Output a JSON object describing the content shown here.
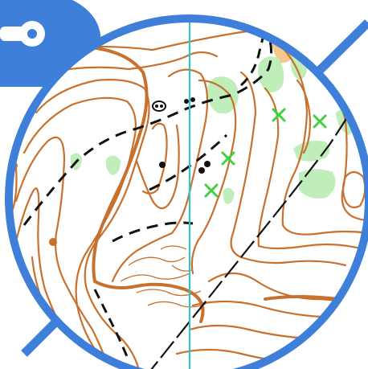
{
  "map": {
    "type": "orienteering-map-magnifier",
    "colors": {
      "frame_blue": "#3d7fd9",
      "contour_brown": "#c8702e",
      "vegetation_green": "#bfeebb",
      "feature_green": "#3fd23f",
      "track_black": "#111111",
      "meridian_cyan": "#34c3c9",
      "open_land_yellow": "#f6c98a",
      "background": "#ffffff"
    },
    "symbols": {
      "badge": "key-hole-icon",
      "meridian": "north-line",
      "green_x": "special-vegetation-feature-icon",
      "black_dot": "boulder-icon",
      "brown_dot": "knoll-icon",
      "dashed_line": "footpath",
      "long_dash_line": "narrow-ride"
    }
  }
}
